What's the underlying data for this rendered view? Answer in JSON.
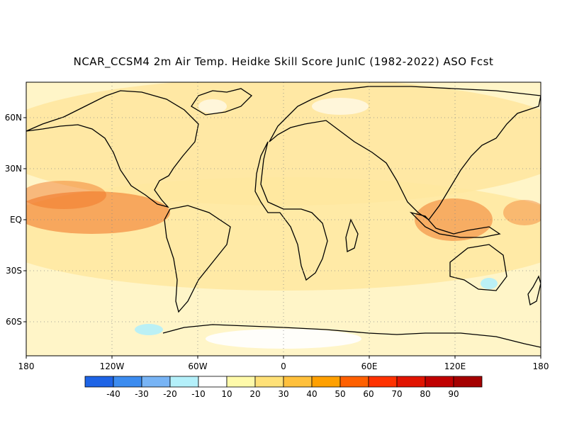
{
  "title": "NCAR_CCSM4 2m Air Temp. Heidke Skill Score JunIC (1982-2022) ASO Fcst",
  "map": {
    "lat_labels": [
      "60N",
      "30N",
      "EQ",
      "30S",
      "60S"
    ],
    "lon_labels": [
      "180",
      "120W",
      "60W",
      "0",
      "60E",
      "120E",
      "180"
    ],
    "grid": "dotted",
    "colors": {
      "land_outline": "#000000",
      "ocean_background": "#fff5c8",
      "dominant_fill": "#ffe7a0",
      "high_skill_fill": "#f07020",
      "low_skill_fill": "#b4f0fa"
    }
  },
  "colorbar": {
    "labels": [
      "-40",
      "-30",
      "-20",
      "-10",
      "10",
      "20",
      "30",
      "40",
      "50",
      "60",
      "70",
      "80",
      "90"
    ],
    "colors": [
      "#1e64e6",
      "#3c8cf0",
      "#78b4f5",
      "#b4f0fa",
      "#ffffff",
      "#fffaaa",
      "#ffe178",
      "#ffc03c",
      "#ffa000",
      "#ff6000",
      "#ff3200",
      "#e11400",
      "#c00000",
      "#a50000"
    ]
  }
}
